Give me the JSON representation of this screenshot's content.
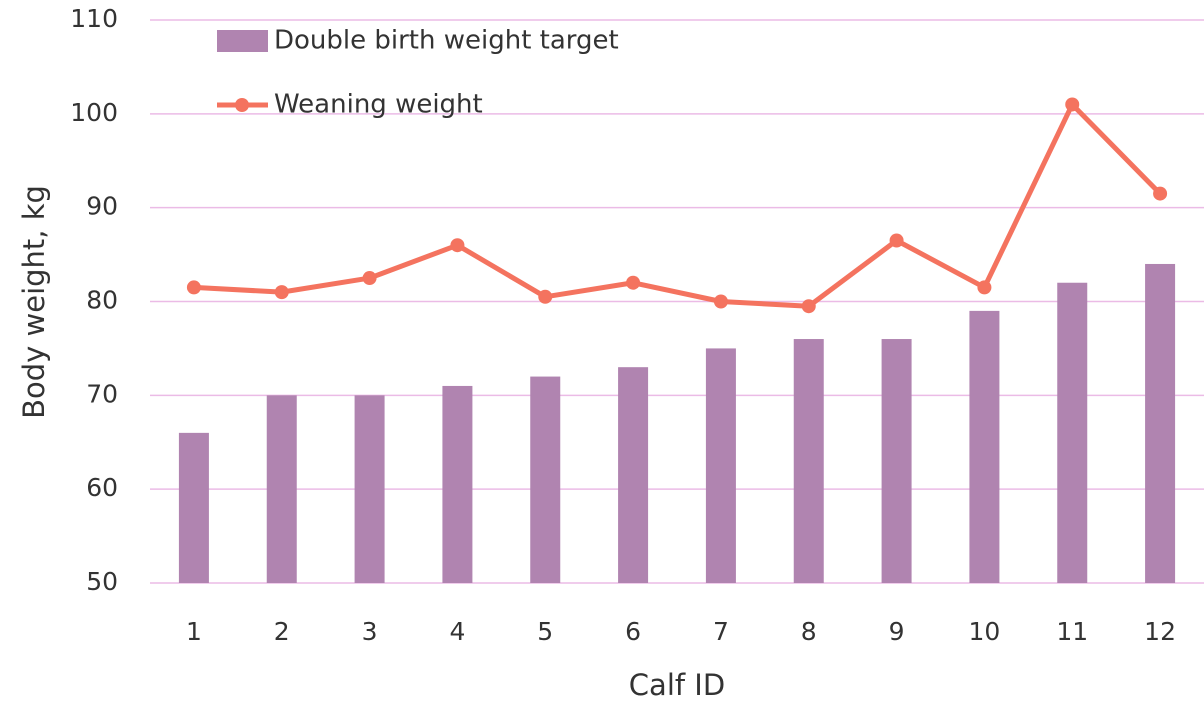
{
  "chart_data": {
    "type": "bar",
    "xlabel": "Calf ID",
    "ylabel": "Body weight, kg",
    "categories": [
      "1",
      "2",
      "3",
      "4",
      "5",
      "6",
      "7",
      "8",
      "9",
      "10",
      "11",
      "12"
    ],
    "series": [
      {
        "name": "Double birth weight target",
        "type": "bar",
        "color": "#b084b0",
        "values": [
          66,
          70,
          70,
          71,
          72,
          73,
          75,
          76,
          76,
          79,
          82,
          84
        ]
      },
      {
        "name": "Weaning weight",
        "type": "line",
        "color": "#f4735f",
        "values": [
          81.5,
          81,
          82.5,
          86,
          80.5,
          82,
          80,
          79.5,
          86.5,
          81.5,
          101,
          91.5
        ]
      }
    ],
    "ylim": [
      50,
      110
    ],
    "yticks": [
      50,
      60,
      70,
      80,
      90,
      100,
      110
    ],
    "grid": true,
    "legend": "upper left"
  }
}
